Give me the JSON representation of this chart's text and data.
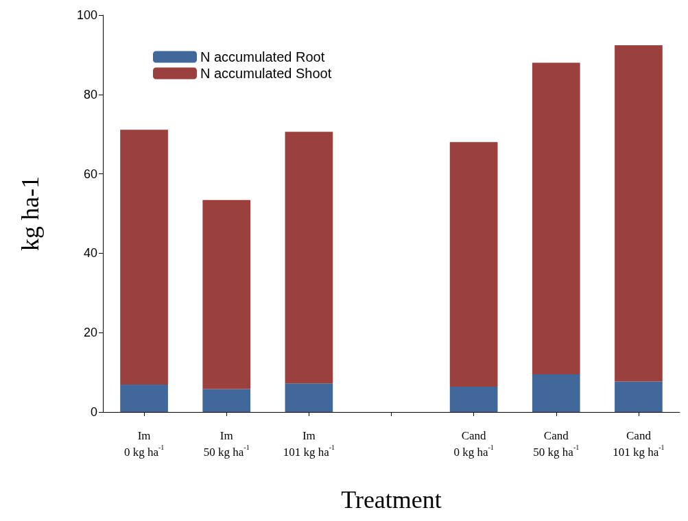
{
  "chart_data": {
    "type": "bar",
    "stacked": true,
    "xlabel": "Treatment",
    "ylabel": "kg ha-1",
    "categories": [
      "Im\n0 kg ha$^{-1}$",
      "Im\n50 kg ha$^{-1}$",
      "Im\n101 kg ha$^{-1}$",
      null,
      "Cand\n0 kg ha$^{-1}$",
      "Cand\n50 kg ha$^{-1}$",
      "Cand\n101 kg ha$^{-1}$"
    ],
    "series": [
      {
        "name": "N accumulated Root",
        "color": "#41689a",
        "values": [
          6.9,
          5.8,
          7.2,
          null,
          6.4,
          9.5,
          7.7
        ]
      },
      {
        "name": "N accumulated Shoot",
        "color": "#9c403e",
        "values": [
          64.2,
          47.6,
          63.4,
          null,
          61.6,
          78.5,
          84.7
        ]
      }
    ],
    "ylim": [
      0,
      100
    ],
    "yticks": [
      0,
      20,
      40,
      60,
      80,
      100
    ],
    "grid": false,
    "legend": "top left"
  }
}
